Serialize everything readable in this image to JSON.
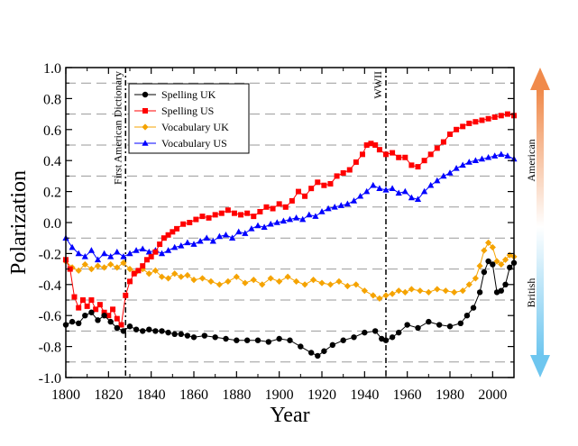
{
  "chart_data": {
    "type": "line",
    "title": "",
    "xlabel": "Year",
    "ylabel": "Polarization",
    "xlim": [
      1800,
      2010
    ],
    "ylim": [
      -1.0,
      1.0
    ],
    "xticks": [
      1800,
      1820,
      1840,
      1860,
      1880,
      1900,
      1920,
      1940,
      1960,
      1980,
      2000
    ],
    "yticks": [
      -1.0,
      -0.8,
      -0.6,
      -0.4,
      -0.2,
      0.0,
      0.2,
      0.4,
      0.6,
      0.8,
      1.0
    ],
    "ytick_labels": [
      "-1.0",
      "-0.8",
      "-0.6",
      "-0.4",
      "-0.2",
      "0.0",
      "0.2",
      "0.4",
      "0.6",
      "0.8",
      "1.0"
    ],
    "grid": "dashed horizontal lines at every 0.1 between -0.9 and 0.9",
    "legend_position": "top-left",
    "series": [
      {
        "name": "Spelling UK",
        "color": "#000000",
        "marker": "circle",
        "points": [
          [
            1800,
            -0.66
          ],
          [
            1803,
            -0.64
          ],
          [
            1806,
            -0.65
          ],
          [
            1809,
            -0.6
          ],
          [
            1812,
            -0.58
          ],
          [
            1815,
            -0.63
          ],
          [
            1818,
            -0.6
          ],
          [
            1821,
            -0.64
          ],
          [
            1824,
            -0.68
          ],
          [
            1827,
            -0.7
          ],
          [
            1830,
            -0.67
          ],
          [
            1833,
            -0.69
          ],
          [
            1836,
            -0.7
          ],
          [
            1839,
            -0.69
          ],
          [
            1842,
            -0.7
          ],
          [
            1845,
            -0.7
          ],
          [
            1848,
            -0.71
          ],
          [
            1851,
            -0.72
          ],
          [
            1854,
            -0.72
          ],
          [
            1857,
            -0.73
          ],
          [
            1860,
            -0.74
          ],
          [
            1865,
            -0.73
          ],
          [
            1870,
            -0.74
          ],
          [
            1875,
            -0.75
          ],
          [
            1880,
            -0.76
          ],
          [
            1885,
            -0.76
          ],
          [
            1890,
            -0.76
          ],
          [
            1895,
            -0.77
          ],
          [
            1900,
            -0.75
          ],
          [
            1905,
            -0.76
          ],
          [
            1910,
            -0.8
          ],
          [
            1915,
            -0.84
          ],
          [
            1918,
            -0.86
          ],
          [
            1921,
            -0.83
          ],
          [
            1925,
            -0.79
          ],
          [
            1930,
            -0.76
          ],
          [
            1935,
            -0.74
          ],
          [
            1940,
            -0.71
          ],
          [
            1945,
            -0.7
          ],
          [
            1948,
            -0.75
          ],
          [
            1950,
            -0.76
          ],
          [
            1953,
            -0.74
          ],
          [
            1956,
            -0.71
          ],
          [
            1960,
            -0.66
          ],
          [
            1965,
            -0.68
          ],
          [
            1970,
            -0.64
          ],
          [
            1975,
            -0.66
          ],
          [
            1980,
            -0.67
          ],
          [
            1985,
            -0.65
          ],
          [
            1988,
            -0.6
          ],
          [
            1991,
            -0.55
          ],
          [
            1994,
            -0.45
          ],
          [
            1996,
            -0.32
          ],
          [
            1998,
            -0.25
          ],
          [
            2000,
            -0.27
          ],
          [
            2002,
            -0.45
          ],
          [
            2004,
            -0.44
          ],
          [
            2006,
            -0.4
          ],
          [
            2008,
            -0.29
          ],
          [
            2010,
            -0.26
          ]
        ]
      },
      {
        "name": "Spelling US",
        "color": "#ff0000",
        "marker": "square",
        "points": [
          [
            1800,
            -0.24
          ],
          [
            1802,
            -0.3
          ],
          [
            1804,
            -0.48
          ],
          [
            1806,
            -0.55
          ],
          [
            1808,
            -0.5
          ],
          [
            1810,
            -0.54
          ],
          [
            1812,
            -0.5
          ],
          [
            1814,
            -0.56
          ],
          [
            1816,
            -0.53
          ],
          [
            1818,
            -0.58
          ],
          [
            1820,
            -0.6
          ],
          [
            1822,
            -0.56
          ],
          [
            1824,
            -0.62
          ],
          [
            1826,
            -0.66
          ],
          [
            1828,
            -0.47
          ],
          [
            1830,
            -0.38
          ],
          [
            1832,
            -0.33
          ],
          [
            1834,
            -0.31
          ],
          [
            1836,
            -0.28
          ],
          [
            1838,
            -0.24
          ],
          [
            1840,
            -0.22
          ],
          [
            1842,
            -0.19
          ],
          [
            1844,
            -0.14
          ],
          [
            1846,
            -0.1
          ],
          [
            1848,
            -0.08
          ],
          [
            1850,
            -0.06
          ],
          [
            1852,
            -0.04
          ],
          [
            1855,
            -0.01
          ],
          [
            1858,
            0.0
          ],
          [
            1861,
            0.02
          ],
          [
            1864,
            0.04
          ],
          [
            1867,
            0.03
          ],
          [
            1870,
            0.05
          ],
          [
            1873,
            0.06
          ],
          [
            1876,
            0.08
          ],
          [
            1879,
            0.06
          ],
          [
            1882,
            0.05
          ],
          [
            1885,
            0.06
          ],
          [
            1888,
            0.04
          ],
          [
            1891,
            0.07
          ],
          [
            1894,
            0.1
          ],
          [
            1897,
            0.09
          ],
          [
            1900,
            0.12
          ],
          [
            1903,
            0.1
          ],
          [
            1906,
            0.14
          ],
          [
            1909,
            0.2
          ],
          [
            1912,
            0.17
          ],
          [
            1915,
            0.22
          ],
          [
            1918,
            0.26
          ],
          [
            1921,
            0.24
          ],
          [
            1924,
            0.25
          ],
          [
            1927,
            0.3
          ],
          [
            1930,
            0.32
          ],
          [
            1933,
            0.34
          ],
          [
            1936,
            0.39
          ],
          [
            1939,
            0.44
          ],
          [
            1941,
            0.5
          ],
          [
            1943,
            0.51
          ],
          [
            1945,
            0.5
          ],
          [
            1947,
            0.47
          ],
          [
            1950,
            0.44
          ],
          [
            1953,
            0.45
          ],
          [
            1956,
            0.42
          ],
          [
            1959,
            0.42
          ],
          [
            1962,
            0.37
          ],
          [
            1965,
            0.36
          ],
          [
            1968,
            0.4
          ],
          [
            1971,
            0.44
          ],
          [
            1974,
            0.48
          ],
          [
            1977,
            0.52
          ],
          [
            1980,
            0.57
          ],
          [
            1983,
            0.6
          ],
          [
            1986,
            0.62
          ],
          [
            1989,
            0.64
          ],
          [
            1992,
            0.65
          ],
          [
            1995,
            0.66
          ],
          [
            1998,
            0.67
          ],
          [
            2001,
            0.68
          ],
          [
            2004,
            0.69
          ],
          [
            2007,
            0.7
          ],
          [
            2010,
            0.69
          ]
        ]
      },
      {
        "name": "Vocabulary UK",
        "color": "#f5a300",
        "marker": "diamond",
        "points": [
          [
            1800,
            -0.25
          ],
          [
            1803,
            -0.29
          ],
          [
            1806,
            -0.31
          ],
          [
            1809,
            -0.27
          ],
          [
            1812,
            -0.3
          ],
          [
            1815,
            -0.28
          ],
          [
            1818,
            -0.29
          ],
          [
            1821,
            -0.27
          ],
          [
            1824,
            -0.29
          ],
          [
            1827,
            -0.26
          ],
          [
            1830,
            -0.3
          ],
          [
            1833,
            -0.32
          ],
          [
            1836,
            -0.3
          ],
          [
            1839,
            -0.33
          ],
          [
            1842,
            -0.31
          ],
          [
            1845,
            -0.35
          ],
          [
            1848,
            -0.36
          ],
          [
            1851,
            -0.33
          ],
          [
            1854,
            -0.35
          ],
          [
            1857,
            -0.34
          ],
          [
            1860,
            -0.37
          ],
          [
            1864,
            -0.36
          ],
          [
            1868,
            -0.38
          ],
          [
            1872,
            -0.4
          ],
          [
            1876,
            -0.38
          ],
          [
            1880,
            -0.35
          ],
          [
            1884,
            -0.39
          ],
          [
            1888,
            -0.37
          ],
          [
            1892,
            -0.4
          ],
          [
            1896,
            -0.36
          ],
          [
            1900,
            -0.38
          ],
          [
            1904,
            -0.35
          ],
          [
            1908,
            -0.38
          ],
          [
            1912,
            -0.4
          ],
          [
            1916,
            -0.37
          ],
          [
            1920,
            -0.39
          ],
          [
            1924,
            -0.4
          ],
          [
            1928,
            -0.38
          ],
          [
            1932,
            -0.41
          ],
          [
            1936,
            -0.4
          ],
          [
            1940,
            -0.44
          ],
          [
            1944,
            -0.47
          ],
          [
            1947,
            -0.49
          ],
          [
            1950,
            -0.47
          ],
          [
            1953,
            -0.46
          ],
          [
            1956,
            -0.44
          ],
          [
            1959,
            -0.45
          ],
          [
            1962,
            -0.43
          ],
          [
            1966,
            -0.44
          ],
          [
            1970,
            -0.45
          ],
          [
            1974,
            -0.43
          ],
          [
            1978,
            -0.44
          ],
          [
            1982,
            -0.45
          ],
          [
            1986,
            -0.44
          ],
          [
            1989,
            -0.4
          ],
          [
            1992,
            -0.36
          ],
          [
            1994,
            -0.28
          ],
          [
            1996,
            -0.18
          ],
          [
            1998,
            -0.13
          ],
          [
            2000,
            -0.16
          ],
          [
            2002,
            -0.25
          ],
          [
            2004,
            -0.27
          ],
          [
            2006,
            -0.24
          ],
          [
            2008,
            -0.21
          ],
          [
            2010,
            -0.22
          ]
        ]
      },
      {
        "name": "Vocabulary US",
        "color": "#0000ff",
        "marker": "triangle",
        "points": [
          [
            1800,
            -0.1
          ],
          [
            1803,
            -0.16
          ],
          [
            1806,
            -0.2
          ],
          [
            1809,
            -0.22
          ],
          [
            1812,
            -0.18
          ],
          [
            1815,
            -0.24
          ],
          [
            1818,
            -0.2
          ],
          [
            1821,
            -0.22
          ],
          [
            1824,
            -0.19
          ],
          [
            1827,
            -0.22
          ],
          [
            1830,
            -0.2
          ],
          [
            1833,
            -0.18
          ],
          [
            1836,
            -0.17
          ],
          [
            1839,
            -0.19
          ],
          [
            1842,
            -0.18
          ],
          [
            1845,
            -0.2
          ],
          [
            1848,
            -0.18
          ],
          [
            1851,
            -0.16
          ],
          [
            1854,
            -0.15
          ],
          [
            1857,
            -0.13
          ],
          [
            1860,
            -0.14
          ],
          [
            1863,
            -0.12
          ],
          [
            1866,
            -0.1
          ],
          [
            1869,
            -0.12
          ],
          [
            1872,
            -0.09
          ],
          [
            1875,
            -0.08
          ],
          [
            1878,
            -0.1
          ],
          [
            1881,
            -0.06
          ],
          [
            1884,
            -0.07
          ],
          [
            1887,
            -0.04
          ],
          [
            1890,
            -0.02
          ],
          [
            1893,
            -0.03
          ],
          [
            1896,
            -0.01
          ],
          [
            1899,
            0.0
          ],
          [
            1902,
            0.01
          ],
          [
            1905,
            0.02
          ],
          [
            1908,
            0.03
          ],
          [
            1911,
            0.02
          ],
          [
            1914,
            0.05
          ],
          [
            1917,
            0.04
          ],
          [
            1920,
            0.07
          ],
          [
            1923,
            0.09
          ],
          [
            1926,
            0.1
          ],
          [
            1929,
            0.11
          ],
          [
            1932,
            0.12
          ],
          [
            1935,
            0.14
          ],
          [
            1938,
            0.17
          ],
          [
            1941,
            0.2
          ],
          [
            1944,
            0.24
          ],
          [
            1947,
            0.22
          ],
          [
            1950,
            0.21
          ],
          [
            1953,
            0.22
          ],
          [
            1956,
            0.19
          ],
          [
            1959,
            0.2
          ],
          [
            1962,
            0.16
          ],
          [
            1965,
            0.15
          ],
          [
            1968,
            0.2
          ],
          [
            1971,
            0.24
          ],
          [
            1974,
            0.27
          ],
          [
            1977,
            0.3
          ],
          [
            1980,
            0.32
          ],
          [
            1983,
            0.35
          ],
          [
            1986,
            0.37
          ],
          [
            1989,
            0.39
          ],
          [
            1992,
            0.4
          ],
          [
            1995,
            0.41
          ],
          [
            1998,
            0.42
          ],
          [
            2001,
            0.43
          ],
          [
            2004,
            0.44
          ],
          [
            2007,
            0.43
          ],
          [
            2010,
            0.41
          ]
        ]
      }
    ],
    "annotations": [
      {
        "text": "First American Dictionary",
        "x": 1828
      },
      {
        "text": "WWII",
        "x": 1950
      }
    ],
    "side_indicator": {
      "top_label": "American",
      "bottom_label": "British",
      "top_color": "#f08a4b",
      "bottom_color": "#6ec6ef"
    }
  }
}
